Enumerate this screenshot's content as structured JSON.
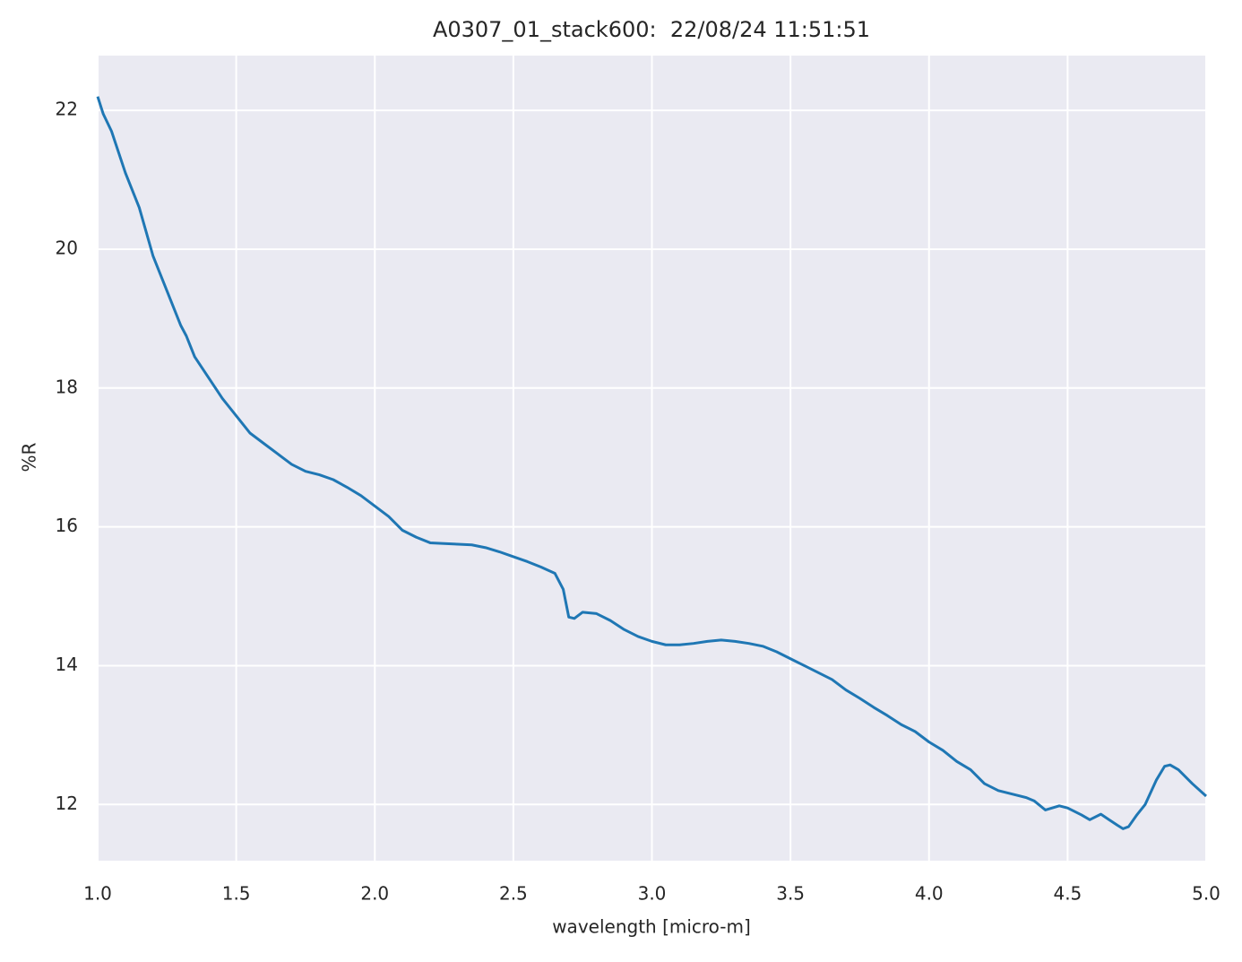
{
  "chart_data": {
    "type": "line",
    "title": "A0307_01_stack600:  22/08/24 11:51:51",
    "x_label": "wavelength [micro-m]",
    "y_label": "%R",
    "x": [
      1.0,
      1.02,
      1.05,
      1.1,
      1.15,
      1.2,
      1.25,
      1.3,
      1.32,
      1.35,
      1.4,
      1.45,
      1.5,
      1.55,
      1.6,
      1.65,
      1.7,
      1.75,
      1.8,
      1.85,
      1.9,
      1.95,
      2.0,
      2.05,
      2.1,
      2.15,
      2.2,
      2.25,
      2.3,
      2.35,
      2.4,
      2.45,
      2.5,
      2.55,
      2.6,
      2.65,
      2.68,
      2.7,
      2.72,
      2.75,
      2.8,
      2.85,
      2.9,
      2.95,
      3.0,
      3.05,
      3.1,
      3.15,
      3.2,
      3.25,
      3.3,
      3.35,
      3.4,
      3.45,
      3.5,
      3.55,
      3.6,
      3.65,
      3.7,
      3.75,
      3.8,
      3.85,
      3.9,
      3.95,
      4.0,
      4.05,
      4.1,
      4.15,
      4.2,
      4.25,
      4.3,
      4.35,
      4.38,
      4.42,
      4.47,
      4.5,
      4.55,
      4.58,
      4.62,
      4.65,
      4.68,
      4.7,
      4.72,
      4.75,
      4.78,
      4.82,
      4.85,
      4.87,
      4.9,
      4.95,
      5.0
    ],
    "series": [
      {
        "name": "%R",
        "color": "#1f77b4",
        "values": [
          22.2,
          21.95,
          21.7,
          21.1,
          20.6,
          19.9,
          19.4,
          18.9,
          18.75,
          18.45,
          18.15,
          17.85,
          17.6,
          17.35,
          17.2,
          17.05,
          16.9,
          16.8,
          16.75,
          16.68,
          16.57,
          16.45,
          16.3,
          16.15,
          15.95,
          15.85,
          15.77,
          15.76,
          15.75,
          15.74,
          15.7,
          15.64,
          15.57,
          15.5,
          15.42,
          15.33,
          15.1,
          14.7,
          14.68,
          14.77,
          14.75,
          14.65,
          14.52,
          14.42,
          14.35,
          14.3,
          14.3,
          14.32,
          14.35,
          14.37,
          14.35,
          14.32,
          14.28,
          14.2,
          14.1,
          14.0,
          13.9,
          13.8,
          13.65,
          13.53,
          13.4,
          13.28,
          13.15,
          13.05,
          12.9,
          12.78,
          12.62,
          12.5,
          12.3,
          12.2,
          12.15,
          12.1,
          12.05,
          11.92,
          11.98,
          11.95,
          11.85,
          11.78,
          11.86,
          11.78,
          11.7,
          11.65,
          11.68,
          11.85,
          12.0,
          12.35,
          12.55,
          12.57,
          12.5,
          12.3,
          12.12
        ]
      }
    ],
    "xlim": [
      1,
      5
    ],
    "xticks": [
      {
        "value": 1,
        "label": "1.0"
      },
      1.5,
      {
        "value": 2,
        "label": "2.0"
      },
      2.5,
      {
        "value": 3,
        "label": "3.0"
      },
      3.5,
      {
        "value": 4,
        "label": "4.0"
      },
      4.5,
      {
        "value": 5,
        "label": "5.0"
      }
    ],
    "ylim": [
      11.19,
      22.79
    ],
    "yticks": [
      12,
      14,
      16,
      18,
      20,
      22
    ],
    "grid": true,
    "background": "#eaeaf2",
    "grid_color": "#ffffff"
  }
}
